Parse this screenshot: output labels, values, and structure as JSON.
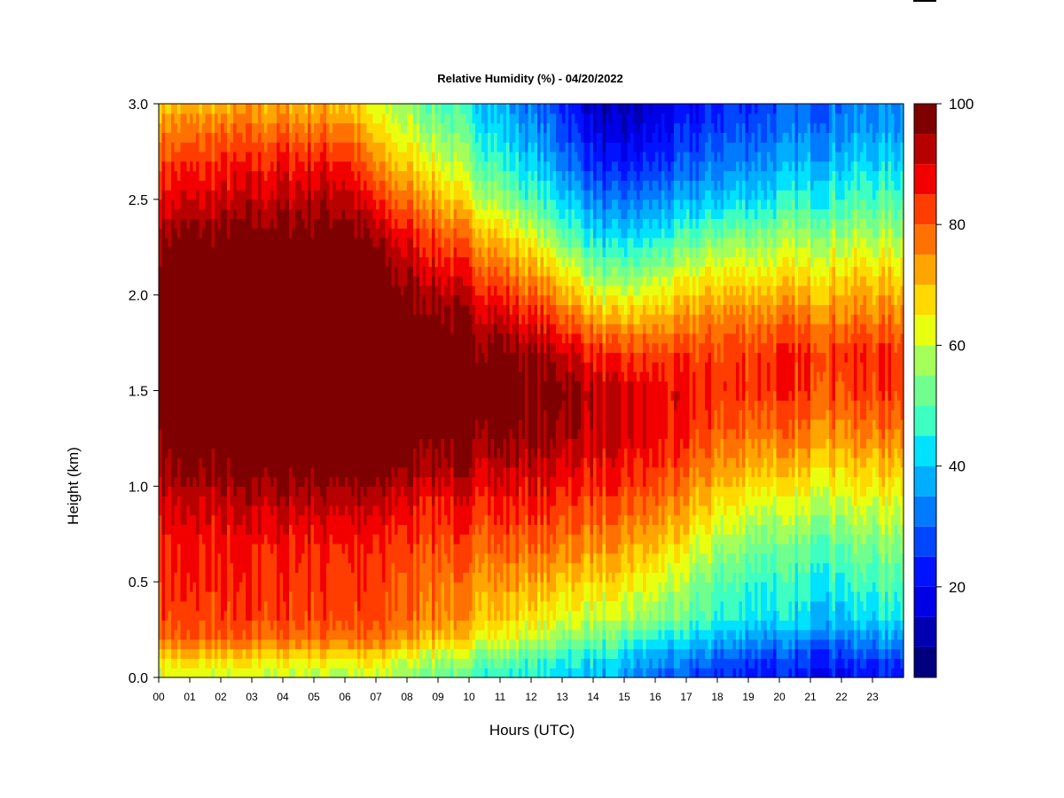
{
  "chart_data": {
    "type": "heatmap",
    "title": "Relative Humidity (%) - 04/20/2022",
    "xlabel": "Hours (UTC)",
    "ylabel": "Height (km)",
    "xlim": [
      0,
      24
    ],
    "ylim": [
      0.0,
      3.0
    ],
    "x_ticks": [
      "00",
      "01",
      "02",
      "03",
      "04",
      "05",
      "06",
      "07",
      "08",
      "09",
      "10",
      "11",
      "12",
      "13",
      "14",
      "15",
      "16",
      "17",
      "18",
      "19",
      "20",
      "21",
      "22",
      "23"
    ],
    "y_ticks": [
      "0.0",
      "0.5",
      "1.0",
      "1.5",
      "2.0",
      "2.5",
      "3.0"
    ],
    "colorbar": {
      "levels": [
        5,
        10,
        15,
        20,
        25,
        30,
        35,
        40,
        45,
        50,
        55,
        60,
        65,
        70,
        75,
        80,
        85,
        90,
        95,
        100
      ],
      "colors": [
        "#00007F",
        "#0000B2",
        "#0000E6",
        "#0012FF",
        "#0046FF",
        "#007AFF",
        "#00AEFF",
        "#00E2FF",
        "#3DFFC2",
        "#70FF8F",
        "#A4FF5B",
        "#E8FF0F",
        "#FFD900",
        "#FFA500",
        "#FF7100",
        "#FF3D00",
        "#F20000",
        "#B70000",
        "#7F0000"
      ],
      "ticks": [
        "100",
        "80",
        "60",
        "40",
        "20"
      ],
      "tick_values": [
        100,
        80,
        60,
        40,
        20
      ]
    },
    "heights_km": [
      0.0,
      0.1,
      0.2,
      0.3,
      0.5,
      0.7,
      0.9,
      1.1,
      1.3,
      1.5,
      1.7,
      1.9,
      2.1,
      2.3,
      2.5,
      2.7,
      2.9,
      3.0
    ],
    "profiles": [
      {
        "hour": 0,
        "rh": [
          62,
          68,
          78,
          82,
          84,
          86,
          90,
          95,
          99,
          100,
          100,
          100,
          100,
          96,
          88,
          82,
          74,
          70
        ]
      },
      {
        "hour": 2,
        "rh": [
          60,
          66,
          78,
          82,
          84,
          86,
          90,
          97,
          100,
          100,
          100,
          100,
          100,
          98,
          90,
          84,
          76,
          70
        ]
      },
      {
        "hour": 4,
        "rh": [
          60,
          66,
          78,
          82,
          84,
          86,
          92,
          99,
          100,
          100,
          100,
          100,
          100,
          99,
          92,
          86,
          76,
          72
        ]
      },
      {
        "hour": 6,
        "rh": [
          58,
          66,
          78,
          82,
          84,
          86,
          92,
          99,
          100,
          100,
          100,
          100,
          100,
          99,
          94,
          86,
          76,
          70
        ]
      },
      {
        "hour": 7,
        "rh": [
          58,
          66,
          77,
          80,
          82,
          84,
          90,
          98,
          100,
          100,
          100,
          100,
          98,
          94,
          84,
          74,
          64,
          60
        ]
      },
      {
        "hour": 9,
        "rh": [
          52,
          58,
          70,
          76,
          78,
          82,
          86,
          94,
          100,
          100,
          100,
          98,
          90,
          82,
          72,
          62,
          54,
          50
        ]
      },
      {
        "hour": 11,
        "rh": [
          46,
          52,
          62,
          68,
          74,
          80,
          86,
          92,
          98,
          100,
          98,
          90,
          80,
          70,
          56,
          46,
          40,
          38
        ]
      },
      {
        "hour": 13,
        "rh": [
          42,
          46,
          56,
          62,
          70,
          78,
          84,
          90,
          96,
          98,
          92,
          80,
          68,
          54,
          42,
          34,
          28,
          26
        ]
      },
      {
        "hour": 14.5,
        "rh": [
          36,
          42,
          50,
          58,
          66,
          74,
          80,
          86,
          90,
          90,
          82,
          68,
          52,
          40,
          30,
          20,
          12,
          10
        ]
      },
      {
        "hour": 16,
        "rh": [
          30,
          36,
          44,
          54,
          62,
          70,
          78,
          84,
          88,
          88,
          82,
          70,
          58,
          44,
          34,
          24,
          18,
          16
        ]
      },
      {
        "hour": 18,
        "rh": [
          24,
          30,
          38,
          46,
          50,
          58,
          66,
          74,
          80,
          84,
          82,
          76,
          66,
          54,
          40,
          32,
          26,
          24
        ]
      },
      {
        "hour": 20,
        "rh": [
          22,
          26,
          34,
          42,
          46,
          52,
          60,
          70,
          78,
          84,
          84,
          76,
          66,
          56,
          44,
          36,
          30,
          28
        ]
      },
      {
        "hour": 22,
        "rh": [
          20,
          26,
          32,
          40,
          46,
          52,
          60,
          68,
          76,
          82,
          84,
          76,
          68,
          58,
          48,
          40,
          34,
          32
        ]
      },
      {
        "hour": 24,
        "rh": [
          22,
          28,
          36,
          44,
          50,
          56,
          62,
          70,
          78,
          84,
          84,
          76,
          68,
          58,
          50,
          42,
          36,
          34
        ]
      }
    ]
  }
}
